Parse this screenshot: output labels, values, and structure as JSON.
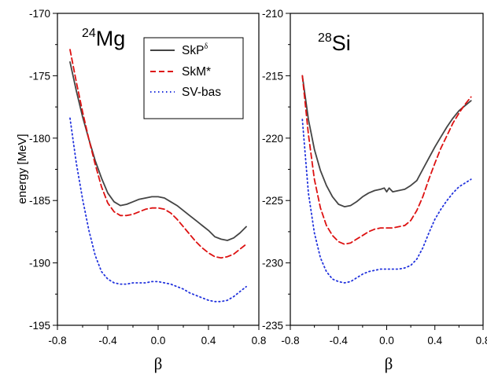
{
  "chart_data": [
    {
      "type": "line",
      "title_mass": "24",
      "title_element": "Mg",
      "xlabel": "β",
      "ylabel": "energy [MeV]",
      "xlim": [
        -0.8,
        0.8
      ],
      "ylim": [
        -195,
        -170
      ],
      "xticks": [
        "-0.8",
        "-0.4",
        "0.0",
        "0.4",
        "0.8"
      ],
      "yticks": [
        "-170",
        "-175",
        "-180",
        "-185",
        "-190",
        "-195"
      ],
      "legend_position": "top-right",
      "series": [
        {
          "name": "SkP",
          "name_sup": "δ",
          "color": "#444444",
          "style": "solid",
          "x": [
            -0.7,
            -0.65,
            -0.6,
            -0.55,
            -0.5,
            -0.45,
            -0.4,
            -0.35,
            -0.3,
            -0.25,
            -0.2,
            -0.15,
            -0.1,
            -0.05,
            0.0,
            0.05,
            0.1,
            0.15,
            0.2,
            0.25,
            0.3,
            0.35,
            0.4,
            0.45,
            0.5,
            0.55,
            0.6,
            0.65,
            0.7
          ],
          "y": [
            -173.9,
            -176.2,
            -178.3,
            -180.1,
            -181.8,
            -183.2,
            -184.4,
            -185.1,
            -185.4,
            -185.3,
            -185.1,
            -184.9,
            -184.8,
            -184.7,
            -184.7,
            -184.8,
            -185.1,
            -185.4,
            -185.8,
            -186.2,
            -186.6,
            -187.0,
            -187.4,
            -187.9,
            -188.1,
            -188.2,
            -188.0,
            -187.6,
            -187.1
          ]
        },
        {
          "name": "SkM*",
          "color": "#dd1111",
          "style": "dashed",
          "x": [
            -0.7,
            -0.65,
            -0.6,
            -0.55,
            -0.5,
            -0.45,
            -0.4,
            -0.35,
            -0.3,
            -0.25,
            -0.2,
            -0.15,
            -0.1,
            -0.05,
            0.0,
            0.05,
            0.1,
            0.15,
            0.2,
            0.25,
            0.3,
            0.35,
            0.4,
            0.45,
            0.5,
            0.55,
            0.6,
            0.65,
            0.7
          ],
          "y": [
            -172.9,
            -175.5,
            -177.9,
            -180.1,
            -182.1,
            -183.9,
            -185.2,
            -185.9,
            -186.2,
            -186.2,
            -186.1,
            -185.9,
            -185.7,
            -185.6,
            -185.6,
            -185.7,
            -186.0,
            -186.5,
            -187.1,
            -187.7,
            -188.3,
            -188.8,
            -189.2,
            -189.5,
            -189.6,
            -189.5,
            -189.3,
            -188.9,
            -188.5
          ]
        },
        {
          "name": "SV-bas",
          "color": "#2233dd",
          "style": "dotted",
          "x": [
            -0.7,
            -0.65,
            -0.6,
            -0.55,
            -0.5,
            -0.45,
            -0.4,
            -0.35,
            -0.3,
            -0.25,
            -0.2,
            -0.15,
            -0.1,
            -0.05,
            0.0,
            0.05,
            0.1,
            0.15,
            0.2,
            0.25,
            0.3,
            0.35,
            0.4,
            0.45,
            0.5,
            0.55,
            0.6,
            0.65,
            0.7
          ],
          "y": [
            -178.4,
            -182.0,
            -184.9,
            -187.4,
            -189.4,
            -190.7,
            -191.3,
            -191.6,
            -191.7,
            -191.7,
            -191.6,
            -191.6,
            -191.6,
            -191.5,
            -191.5,
            -191.6,
            -191.7,
            -191.9,
            -192.1,
            -192.4,
            -192.6,
            -192.8,
            -193.0,
            -193.1,
            -193.1,
            -193.0,
            -192.7,
            -192.3,
            -191.9
          ]
        }
      ]
    },
    {
      "type": "line",
      "title_mass": "28",
      "title_element": "Si",
      "xlabel": "β",
      "ylabel": "",
      "xlim": [
        -0.8,
        0.8
      ],
      "ylim": [
        -235,
        -210
      ],
      "xticks": [
        "-0.8",
        "-0.4",
        "0.0",
        "0.4",
        "0.8"
      ],
      "yticks": [
        "-210",
        "-215",
        "-220",
        "-225",
        "-230",
        "-235"
      ],
      "series": [
        {
          "name": "SkP",
          "color": "#444444",
          "style": "solid",
          "x": [
            -0.7,
            -0.65,
            -0.6,
            -0.55,
            -0.5,
            -0.45,
            -0.4,
            -0.35,
            -0.3,
            -0.25,
            -0.2,
            -0.15,
            -0.1,
            -0.05,
            -0.02,
            0.0,
            0.02,
            0.05,
            0.1,
            0.15,
            0.2,
            0.25,
            0.3,
            0.35,
            0.4,
            0.45,
            0.5,
            0.55,
            0.6,
            0.65,
            0.7
          ],
          "y": [
            -215.0,
            -218.5,
            -220.9,
            -222.6,
            -223.8,
            -224.7,
            -225.3,
            -225.5,
            -225.4,
            -225.1,
            -224.7,
            -224.4,
            -224.2,
            -224.1,
            -224.0,
            -224.3,
            -224.0,
            -224.3,
            -224.2,
            -224.1,
            -223.8,
            -223.4,
            -222.5,
            -221.6,
            -220.7,
            -219.9,
            -219.1,
            -218.4,
            -217.8,
            -217.4,
            -217.0
          ]
        },
        {
          "name": "SkM*",
          "color": "#dd1111",
          "style": "dashed",
          "x": [
            -0.7,
            -0.65,
            -0.6,
            -0.55,
            -0.5,
            -0.45,
            -0.4,
            -0.35,
            -0.3,
            -0.25,
            -0.2,
            -0.15,
            -0.1,
            -0.05,
            0.0,
            0.05,
            0.1,
            0.15,
            0.2,
            0.25,
            0.3,
            0.35,
            0.4,
            0.45,
            0.5,
            0.55,
            0.6,
            0.65,
            0.7
          ],
          "y": [
            -215.0,
            -219.7,
            -223.3,
            -225.6,
            -227.0,
            -227.8,
            -228.3,
            -228.5,
            -228.4,
            -228.1,
            -227.8,
            -227.5,
            -227.3,
            -227.2,
            -227.2,
            -227.2,
            -227.1,
            -227.0,
            -226.6,
            -225.8,
            -224.7,
            -223.3,
            -222.0,
            -220.8,
            -219.8,
            -218.8,
            -218.0,
            -217.3,
            -216.7
          ]
        },
        {
          "name": "SV-bas",
          "color": "#2233dd",
          "style": "dotted",
          "x": [
            -0.7,
            -0.65,
            -0.6,
            -0.55,
            -0.5,
            -0.45,
            -0.4,
            -0.35,
            -0.3,
            -0.25,
            -0.2,
            -0.15,
            -0.1,
            -0.05,
            0.0,
            0.05,
            0.1,
            0.15,
            0.2,
            0.25,
            0.3,
            0.35,
            0.4,
            0.45,
            0.5,
            0.55,
            0.6,
            0.65,
            0.7
          ],
          "y": [
            -218.5,
            -224.4,
            -227.6,
            -229.6,
            -230.7,
            -231.3,
            -231.5,
            -231.6,
            -231.5,
            -231.2,
            -230.9,
            -230.7,
            -230.6,
            -230.5,
            -230.5,
            -230.5,
            -230.5,
            -230.4,
            -230.2,
            -229.7,
            -228.8,
            -227.6,
            -226.5,
            -225.7,
            -225.0,
            -224.4,
            -223.9,
            -223.6,
            -223.3
          ]
        }
      ]
    }
  ]
}
